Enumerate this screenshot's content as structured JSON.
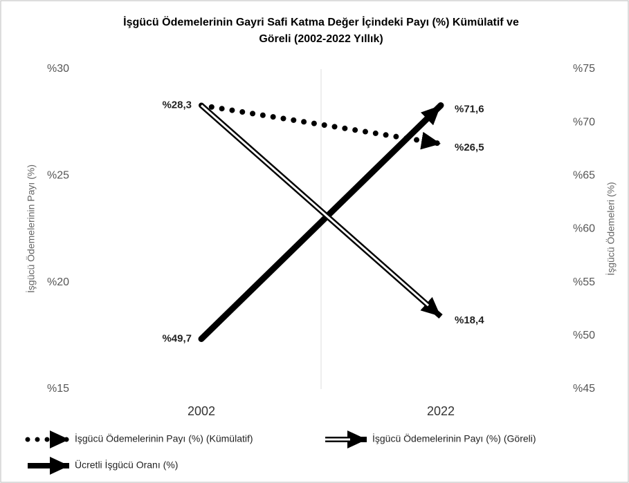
{
  "chart_data": {
    "type": "line",
    "title": [
      "İşgücü Ödemelerinin Gayri Safi Katma Değer İçindeki Payı (%) Kümülatif ve",
      "Göreli (2002-2022 Yıllık)"
    ],
    "categories": [
      "2002",
      "2022"
    ],
    "ylabel": "İşgücü Ödemelerinin  Payı (%)",
    "y2label": "İşgücü Ödemeleri (%)",
    "ylim": [
      15,
      30
    ],
    "yticks": [
      {
        "value": 15,
        "label": "%15"
      },
      {
        "value": 20,
        "label": "%20"
      },
      {
        "value": 25,
        "label": "%25"
      },
      {
        "value": 30,
        "label": "%30"
      }
    ],
    "y2lim": [
      45,
      75
    ],
    "y2ticks": [
      {
        "value": 45,
        "label": "%45"
      },
      {
        "value": 50,
        "label": "%50"
      },
      {
        "value": 55,
        "label": "%55"
      },
      {
        "value": 60,
        "label": "%60"
      },
      {
        "value": 65,
        "label": "%65"
      },
      {
        "value": 70,
        "label": "%70"
      },
      {
        "value": 75,
        "label": "%75"
      }
    ],
    "grid": false,
    "series": [
      {
        "name": "İşgücü Ödemelerinin Payı (%) (Kümülatif)",
        "color": "#000000",
        "style": "dotted",
        "values": [
          28.3,
          26.5
        ],
        "value_labels": [
          null,
          "%26,5"
        ]
      },
      {
        "name": "İşgücü Ödemelerinin Payı (%) (Göreli)",
        "color": "#000000",
        "style": "double",
        "values": [
          28.3,
          18.4
        ],
        "value_labels": [
          "%28,3",
          "%18,4"
        ]
      },
      {
        "name": "Ücretli İşgücü Oranı (%)",
        "color": "#000000",
        "style": "thick",
        "axis": "y2",
        "values": [
          49.7,
          71.6
        ],
        "value_labels": [
          "%49,7",
          "%71,6"
        ]
      }
    ]
  }
}
